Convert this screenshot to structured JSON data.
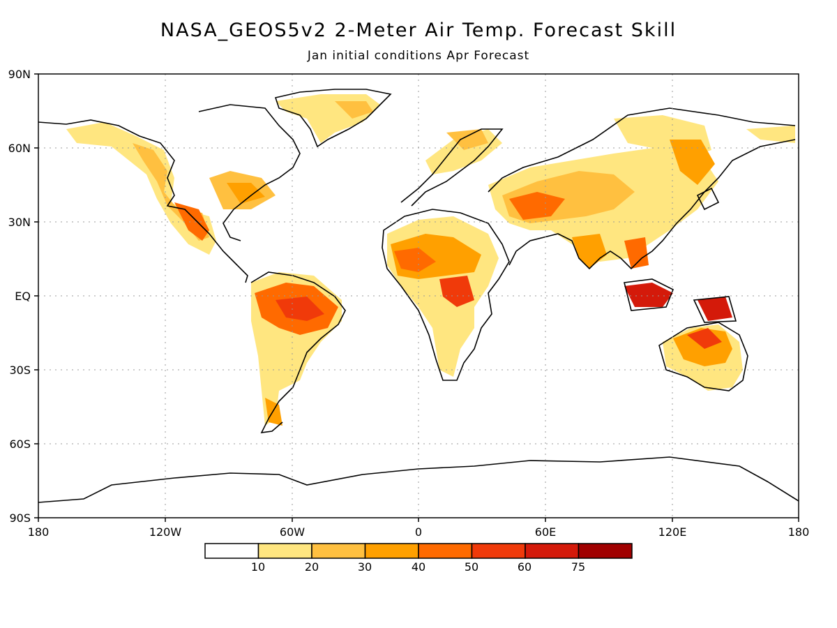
{
  "title": "NASA_GEOS5v2 2-Meter Air Temp. Forecast Skill",
  "subtitle": "Jan initial conditions  Apr Forecast",
  "axes": {
    "lat_ticks": [
      "90N",
      "60N",
      "30N",
      "EQ",
      "30S",
      "60S",
      "90S"
    ],
    "lon_ticks": [
      "180",
      "120W",
      "60W",
      "0",
      "60E",
      "120E",
      "180"
    ]
  },
  "colorbar": {
    "labels": [
      "10",
      "20",
      "30",
      "40",
      "50",
      "60",
      "75"
    ],
    "colors": [
      "#ffffff",
      "#ffe680",
      "#ffc040",
      "#ffa000",
      "#ff6a00",
      "#f03a0a",
      "#d41a0a",
      "#a00000"
    ]
  }
}
